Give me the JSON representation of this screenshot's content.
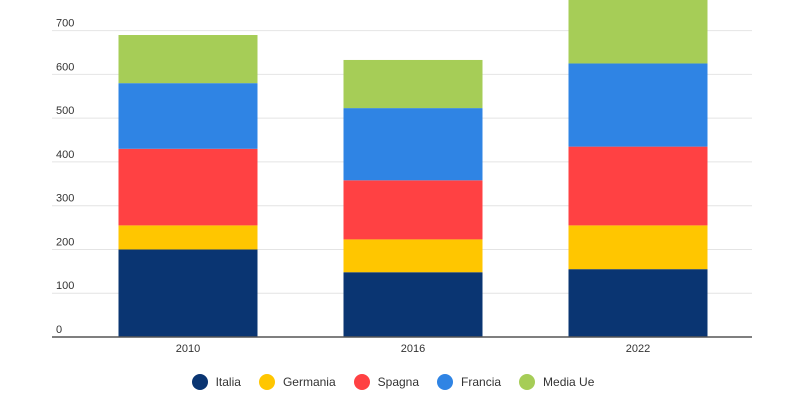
{
  "chart_data": {
    "type": "bar",
    "stacked": true,
    "categories": [
      "2010",
      "2016",
      "2022"
    ],
    "series": [
      {
        "name": "Italia",
        "color": "#0A3572",
        "values": [
          200,
          148,
          155
        ]
      },
      {
        "name": "Germania",
        "color": "#FFC600",
        "values": [
          55,
          75,
          100
        ]
      },
      {
        "name": "Spagna",
        "color": "#FF4143",
        "values": [
          175,
          135,
          180
        ]
      },
      {
        "name": "Francia",
        "color": "#2F84E4",
        "values": [
          150,
          165,
          190
        ]
      },
      {
        "name": "Media Ue",
        "color": "#A6CD57",
        "values": [
          110,
          110,
          145
        ]
      }
    ],
    "ylim": [
      0,
      770
    ],
    "yticks": [
      0,
      100,
      200,
      300,
      400,
      500,
      600,
      700
    ],
    "grid": true,
    "legend_position": "bottom"
  }
}
